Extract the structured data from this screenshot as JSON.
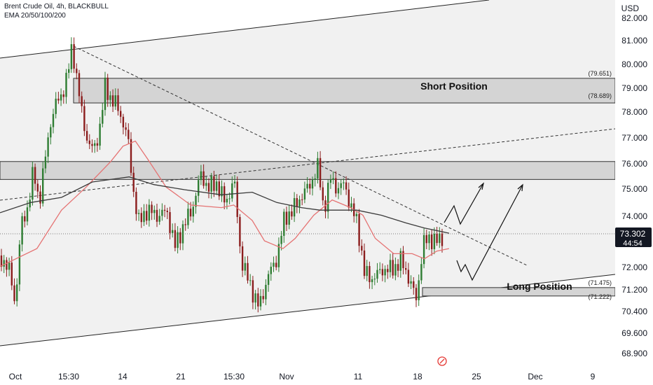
{
  "header": {
    "symbol_line": "Brent Crude Oil, 4h, BLACKBULL",
    "indicator_line": "EMA 20/50/100/200",
    "currency": "USD"
  },
  "chart_data": {
    "type": "candlestick",
    "title": "Brent Crude Oil, 4h, BLACKBULL",
    "ylim": [
      68.4,
      82.6
    ],
    "y_ticks": [
      "82.000",
      "81.000",
      "80.000",
      "79.000",
      "78.000",
      "77.000",
      "76.000",
      "75.000",
      "74.000",
      "72.000",
      "71.200",
      "70.400",
      "69.600",
      "68.900"
    ],
    "x_ticks": [
      "Oct",
      "15:30",
      "14",
      "21",
      "15:30",
      "Nov",
      "11",
      "18",
      "25",
      "Dec",
      "9"
    ],
    "last_price": {
      "value": "73.302",
      "countdown": "44:54",
      "color": "#131722"
    },
    "zones": [
      {
        "label": "Short Position",
        "upper": 79.651,
        "lower": 78.689,
        "upper_text": "(79.651)",
        "lower_text": "(78.689)"
      },
      {
        "label": "Long Position",
        "upper": 71.475,
        "lower": 71.222,
        "upper_text": "(71.475)",
        "lower_text": "(71.222)"
      },
      {
        "label": "",
        "upper": 76.4,
        "lower": 75.7
      }
    ],
    "colors": {
      "up": "#2e7d32",
      "down": "#8b1d1d",
      "ema_fast": "#e57373",
      "ema_slow": "#3a3a3a",
      "zone_fill": "#d4d4d4",
      "channel_fill": "#f1f1f1"
    },
    "ema_fast": [
      [
        0,
        72.3
      ],
      [
        0.06,
        73.0
      ],
      [
        0.1,
        74.5
      ],
      [
        0.14,
        75.4
      ],
      [
        0.18,
        76.4
      ],
      [
        0.2,
        77.0
      ],
      [
        0.22,
        77.2
      ],
      [
        0.24,
        76.5
      ],
      [
        0.27,
        75.4
      ],
      [
        0.31,
        74.7
      ],
      [
        0.36,
        74.6
      ],
      [
        0.38,
        74.7
      ],
      [
        0.41,
        74.1
      ],
      [
        0.43,
        73.3
      ],
      [
        0.46,
        73.0
      ],
      [
        0.48,
        73.4
      ],
      [
        0.51,
        74.3
      ],
      [
        0.54,
        74.9
      ],
      [
        0.57,
        74.6
      ],
      [
        0.59,
        74.3
      ],
      [
        0.61,
        73.4
      ],
      [
        0.64,
        72.8
      ],
      [
        0.67,
        72.8
      ],
      [
        0.69,
        72.6
      ],
      [
        0.71,
        72.9
      ],
      [
        0.73,
        73.0
      ]
    ],
    "ema_slow": [
      [
        0,
        74.4
      ],
      [
        0.05,
        74.8
      ],
      [
        0.1,
        75.0
      ],
      [
        0.15,
        75.6
      ],
      [
        0.21,
        75.8
      ],
      [
        0.25,
        75.5
      ],
      [
        0.3,
        75.3
      ],
      [
        0.36,
        75.1
      ],
      [
        0.41,
        75.2
      ],
      [
        0.45,
        74.8
      ],
      [
        0.49,
        74.6
      ],
      [
        0.52,
        74.5
      ],
      [
        0.58,
        74.5
      ],
      [
        0.62,
        74.3
      ],
      [
        0.66,
        74.0
      ],
      [
        0.69,
        73.8
      ],
      [
        0.73,
        73.6
      ]
    ]
  }
}
